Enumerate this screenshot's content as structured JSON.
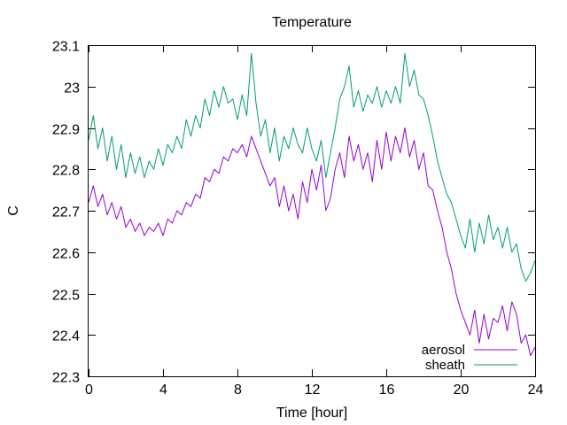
{
  "chart_data": {
    "type": "line",
    "title": "Temperature",
    "xlabel": "Time [hour]",
    "ylabel": "C",
    "xlim": [
      0,
      24
    ],
    "ylim": [
      22.3,
      23.1
    ],
    "x_ticks": [
      0,
      4,
      8,
      12,
      16,
      20,
      24
    ],
    "y_ticks": [
      22.3,
      22.4,
      22.5,
      22.6,
      22.7,
      22.8,
      22.9,
      23.0,
      23.1
    ],
    "x_tick_labels": [
      "0",
      "4",
      "8",
      "12",
      "16",
      "20",
      "24"
    ],
    "y_tick_labels": [
      "22.3",
      "22.4",
      "22.5",
      "22.6",
      "22.7",
      "22.8",
      "22.9",
      "23",
      "23.1"
    ],
    "grid": false,
    "legend_position": "bottom-right",
    "colors": {
      "aerosol": "#9400d3",
      "sheath": "#009e73"
    },
    "series": [
      {
        "name": "aerosol",
        "x": [
          0,
          0.25,
          0.5,
          0.75,
          1,
          1.25,
          1.5,
          1.75,
          2,
          2.25,
          2.5,
          2.75,
          3,
          3.25,
          3.5,
          3.75,
          4,
          4.25,
          4.5,
          4.75,
          5,
          5.25,
          5.5,
          5.75,
          6,
          6.25,
          6.5,
          6.75,
          7,
          7.25,
          7.5,
          7.75,
          8,
          8.25,
          8.5,
          8.75,
          9,
          9.25,
          9.5,
          9.75,
          10,
          10.25,
          10.5,
          10.75,
          11,
          11.25,
          11.5,
          11.75,
          12,
          12.25,
          12.5,
          12.75,
          13,
          13.25,
          13.5,
          13.75,
          14,
          14.25,
          14.5,
          14.75,
          15,
          15.25,
          15.5,
          15.75,
          16,
          16.25,
          16.5,
          16.75,
          17,
          17.25,
          17.5,
          17.75,
          18,
          18.25,
          18.5,
          18.75,
          19,
          19.25,
          19.5,
          19.75,
          20,
          20.25,
          20.5,
          20.75,
          21,
          21.25,
          21.5,
          21.75,
          22,
          22.25,
          22.5,
          22.75,
          23,
          23.25,
          23.5,
          23.75,
          24
        ],
        "values": [
          22.72,
          22.76,
          22.71,
          22.74,
          22.69,
          22.72,
          22.68,
          22.71,
          22.66,
          22.68,
          22.65,
          22.67,
          22.64,
          22.66,
          22.65,
          22.67,
          22.64,
          22.68,
          22.67,
          22.7,
          22.69,
          22.72,
          22.71,
          22.74,
          22.73,
          22.78,
          22.77,
          22.8,
          22.79,
          22.83,
          22.82,
          22.85,
          22.84,
          22.86,
          22.83,
          22.88,
          22.85,
          22.82,
          22.79,
          22.76,
          22.78,
          22.71,
          22.76,
          22.7,
          22.74,
          22.68,
          22.77,
          22.72,
          22.8,
          22.75,
          22.81,
          22.7,
          22.73,
          22.8,
          22.84,
          22.78,
          22.88,
          22.82,
          22.86,
          22.8,
          22.84,
          22.77,
          22.87,
          22.8,
          22.89,
          22.82,
          22.88,
          22.84,
          22.9,
          22.83,
          22.87,
          22.8,
          22.84,
          22.76,
          22.75,
          22.7,
          22.66,
          22.6,
          22.56,
          22.5,
          22.46,
          22.43,
          22.4,
          22.46,
          22.38,
          22.45,
          22.39,
          22.44,
          22.43,
          22.47,
          22.41,
          22.48,
          22.45,
          22.38,
          22.4,
          22.35,
          22.37
        ]
      },
      {
        "name": "sheath",
        "x": [
          0,
          0.25,
          0.5,
          0.75,
          1,
          1.25,
          1.5,
          1.75,
          2,
          2.25,
          2.5,
          2.75,
          3,
          3.25,
          3.5,
          3.75,
          4,
          4.25,
          4.5,
          4.75,
          5,
          5.25,
          5.5,
          5.75,
          6,
          6.25,
          6.5,
          6.75,
          7,
          7.25,
          7.5,
          7.75,
          8,
          8.25,
          8.5,
          8.75,
          9,
          9.25,
          9.5,
          9.75,
          10,
          10.25,
          10.5,
          10.75,
          11,
          11.25,
          11.5,
          11.75,
          12,
          12.25,
          12.5,
          12.75,
          13,
          13.25,
          13.5,
          13.75,
          14,
          14.25,
          14.5,
          14.75,
          15,
          15.25,
          15.5,
          15.75,
          16,
          16.25,
          16.5,
          16.75,
          17,
          17.25,
          17.5,
          17.75,
          18,
          18.25,
          18.5,
          18.75,
          19,
          19.25,
          19.5,
          19.75,
          20,
          20.25,
          20.5,
          20.75,
          21,
          21.25,
          21.5,
          21.75,
          22,
          22.25,
          22.5,
          22.75,
          23,
          23.25,
          23.5,
          23.75,
          24
        ],
        "values": [
          22.87,
          22.93,
          22.85,
          22.9,
          22.82,
          22.88,
          22.8,
          22.86,
          22.78,
          22.84,
          22.79,
          22.83,
          22.78,
          22.82,
          22.8,
          22.85,
          22.81,
          22.86,
          22.84,
          22.88,
          22.85,
          22.92,
          22.88,
          22.93,
          22.9,
          22.97,
          22.93,
          22.99,
          22.95,
          23.0,
          22.96,
          22.97,
          22.92,
          22.98,
          22.93,
          23.08,
          22.96,
          22.88,
          22.92,
          22.84,
          22.9,
          22.82,
          22.88,
          22.85,
          22.9,
          22.86,
          22.84,
          22.9,
          22.85,
          22.82,
          22.87,
          22.78,
          22.84,
          22.9,
          22.97,
          23.0,
          23.05,
          22.95,
          22.99,
          22.94,
          22.98,
          22.96,
          23.0,
          22.95,
          22.99,
          22.96,
          23.0,
          22.96,
          23.08,
          23.0,
          23.04,
          22.98,
          22.97,
          22.93,
          22.88,
          22.82,
          22.78,
          22.74,
          22.72,
          22.68,
          22.64,
          22.61,
          22.68,
          22.6,
          22.67,
          22.62,
          22.69,
          22.63,
          22.66,
          22.61,
          22.66,
          22.6,
          22.62,
          22.56,
          22.53,
          22.55,
          22.58
        ]
      }
    ]
  }
}
